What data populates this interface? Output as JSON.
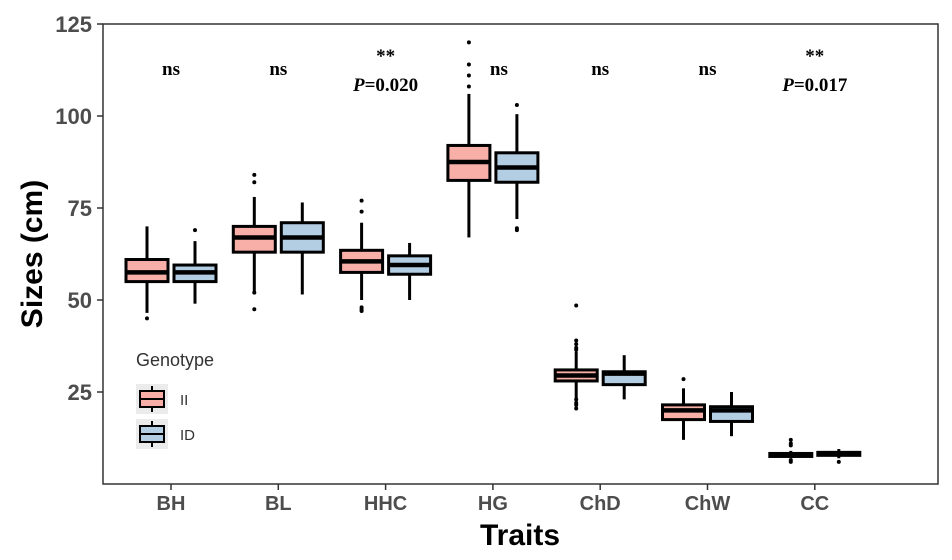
{
  "chart_data": {
    "type": "boxplot",
    "title": "",
    "xlabel": "Traits",
    "ylabel": "Sizes (cm)",
    "ylim": [
      0,
      125
    ],
    "yticks": [
      25,
      50,
      75,
      100,
      125
    ],
    "grid": false,
    "categories": [
      "BH",
      "BL",
      "HHC",
      "HG",
      "ChD",
      "ChW",
      "CC"
    ],
    "legend": {
      "title": "Genotype",
      "placement": "bottom-left-inside",
      "entries": [
        {
          "name": "II",
          "color": "#F8AFA8"
        },
        {
          "name": "ID",
          "color": "#B3CDE3"
        }
      ]
    },
    "series": [
      {
        "name": "II",
        "color": "#F8AFA8",
        "boxes": [
          {
            "whisker_low": 46.5,
            "q1": 55,
            "median": 57.5,
            "q3": 61,
            "whisker_high": 70,
            "outliers": [
              45
            ]
          },
          {
            "whisker_low": 52,
            "q1": 63,
            "median": 67,
            "q3": 70,
            "whisker_high": 78,
            "outliers": [
              47.5,
              52,
              82,
              84
            ]
          },
          {
            "whisker_low": 50,
            "q1": 57.5,
            "median": 60.5,
            "q3": 63.5,
            "whisker_high": 71,
            "outliers": [
              47,
              47.5,
              48,
              74,
              77
            ]
          },
          {
            "whisker_low": 67,
            "q1": 82.5,
            "median": 87.5,
            "q3": 92,
            "whisker_high": 106,
            "outliers": [
              108,
              111,
              114,
              120
            ]
          },
          {
            "whisker_low": 21,
            "q1": 28,
            "median": 29.5,
            "q3": 31,
            "whisker_high": 36,
            "outliers": [
              20.5,
              21.5,
              22,
              23,
              36.5,
              37,
              38,
              39,
              48.5
            ]
          },
          {
            "whisker_low": 12,
            "q1": 17.5,
            "median": 20,
            "q3": 21.5,
            "whisker_high": 26,
            "outliers": [
              28.5
            ]
          },
          {
            "whisker_low": 7,
            "q1": 7.8,
            "median": 8,
            "q3": 8.3,
            "whisker_high": 9,
            "outliers": [
              6,
              6.5,
              10.5,
              11,
              12
            ]
          }
        ]
      },
      {
        "name": "ID",
        "color": "#B3CDE3",
        "boxes": [
          {
            "whisker_low": 49,
            "q1": 55,
            "median": 57.5,
            "q3": 59.5,
            "whisker_high": 66,
            "outliers": [
              69
            ]
          },
          {
            "whisker_low": 51.5,
            "q1": 63,
            "median": 67,
            "q3": 71,
            "whisker_high": 76.5,
            "outliers": []
          },
          {
            "whisker_low": 50,
            "q1": 57,
            "median": 59.5,
            "q3": 62,
            "whisker_high": 65.5,
            "outliers": []
          },
          {
            "whisker_low": 72,
            "q1": 82,
            "median": 86,
            "q3": 90,
            "whisker_high": 100.5,
            "outliers": [
              69,
              69.5,
              103
            ]
          },
          {
            "whisker_low": 23,
            "q1": 27,
            "median": 30,
            "q3": 30.5,
            "whisker_high": 35,
            "outliers": []
          },
          {
            "whisker_low": 13,
            "q1": 17,
            "median": 20,
            "q3": 21,
            "whisker_high": 25,
            "outliers": []
          },
          {
            "whisker_low": 7,
            "q1": 8,
            "median": 8.3,
            "q3": 8.6,
            "whisker_high": 9.5,
            "outliers": [
              6
            ]
          }
        ]
      }
    ],
    "annotations": [
      {
        "category": "BH",
        "stars": "",
        "text": "ns"
      },
      {
        "category": "BL",
        "stars": "",
        "text": "ns"
      },
      {
        "category": "HHC",
        "stars": "**",
        "p_label": "P",
        "p_value": "=0.020"
      },
      {
        "category": "HG",
        "stars": "",
        "text": "ns"
      },
      {
        "category": "ChD",
        "stars": "",
        "text": "ns"
      },
      {
        "category": "ChW",
        "stars": "",
        "text": "ns"
      },
      {
        "category": "CC",
        "stars": "**",
        "p_label": "P",
        "p_value": "=0.017"
      }
    ]
  }
}
